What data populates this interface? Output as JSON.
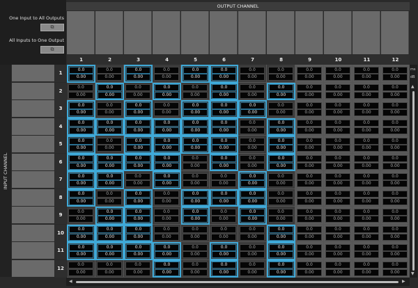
{
  "left_panel": {
    "one_to_all_label": "One Input to All Outputs",
    "all_to_one_label": "All Inputs to One Output",
    "button_icon": "external-link-icon",
    "button_glyph": "⧉"
  },
  "output_header": "OUTPUT CHANNEL",
  "input_header": "INPUT CHANNEL",
  "units": {
    "delay": "ms",
    "gain": "dB"
  },
  "columns": [
    "1",
    "2",
    "3",
    "4",
    "5",
    "6",
    "7",
    "8",
    "9",
    "10",
    "11",
    "12"
  ],
  "rows": [
    "1",
    "2",
    "3",
    "4",
    "5",
    "6",
    "7",
    "8",
    "9",
    "10",
    "11",
    "12"
  ],
  "cell_values": {
    "delay": "0.0",
    "gain": "0.00"
  },
  "active_columns": 8,
  "accent_color": "#3fa9d8",
  "active_matrix": [
    [
      1,
      3,
      5,
      6
    ],
    [
      2,
      4,
      6,
      8
    ],
    [
      1,
      3,
      5,
      6,
      7
    ],
    [
      1,
      2,
      3,
      4,
      5,
      6,
      8
    ],
    [
      1,
      3,
      4,
      5,
      6,
      8
    ],
    [
      1,
      2,
      3,
      4,
      6,
      8
    ],
    [
      1,
      2,
      4,
      7
    ],
    [
      1,
      3,
      5,
      6,
      7
    ],
    [
      2,
      3,
      5,
      7
    ],
    [
      1,
      2,
      3,
      8
    ],
    [
      1,
      2,
      3,
      4,
      6,
      8
    ],
    [
      4,
      6,
      8
    ]
  ],
  "scroll": {
    "up": "▲",
    "down": "▼",
    "left": "◀",
    "right": "▶"
  }
}
